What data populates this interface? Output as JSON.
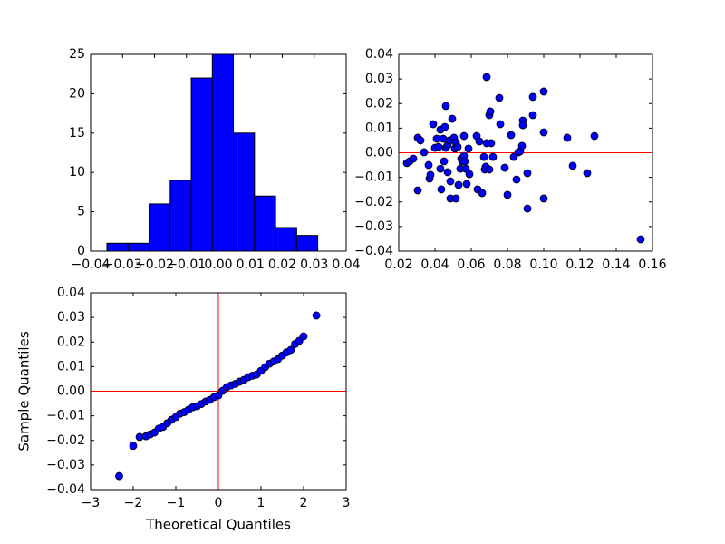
{
  "chart_data": [
    {
      "type": "histogram",
      "color": "#0000ff",
      "edge_color": "#000000",
      "grid": false,
      "bins": [
        -0.0349,
        -0.0283,
        -0.0217,
        -0.0151,
        -0.0085,
        -0.0019,
        0.0047,
        0.0113,
        0.0179,
        0.0245,
        0.0311
      ],
      "values": [
        1,
        1,
        6,
        9,
        22,
        25,
        15,
        7,
        3,
        2
      ],
      "xlim": [
        -0.04,
        0.04
      ],
      "xticks": [
        {
          "value": -0.04,
          "label": "−0.04"
        },
        {
          "value": -0.03,
          "label": "−0.03"
        },
        {
          "value": -0.02,
          "label": "−0.02"
        },
        {
          "value": -0.01,
          "label": "−0.01"
        },
        {
          "value": 0,
          "label": "0.00"
        },
        0.01,
        0.02,
        0.03,
        0.04
      ],
      "ylim": [
        0,
        25
      ],
      "yticks": [
        0,
        5,
        10,
        15,
        20,
        25
      ]
    },
    {
      "type": "scatter",
      "color": "#0000ff",
      "edge_color": "#000000",
      "grid": false,
      "hline": 0,
      "line_color": "#ff0000",
      "x": [
        0.0245,
        0.026,
        0.028,
        0.0305,
        0.0305,
        0.032,
        0.034,
        0.0365,
        0.037,
        0.0375,
        0.039,
        0.04,
        0.041,
        0.042,
        0.043,
        0.043,
        0.0435,
        0.0445,
        0.045,
        0.0455,
        0.046,
        0.046,
        0.047,
        0.047,
        0.048,
        0.0485,
        0.0485,
        0.0495,
        0.0505,
        0.051,
        0.0515,
        0.0515,
        0.0525,
        0.053,
        0.054,
        0.0545,
        0.055,
        0.056,
        0.056,
        0.0565,
        0.057,
        0.0575,
        0.0585,
        0.059,
        0.063,
        0.0635,
        0.0645,
        0.066,
        0.067,
        0.0675,
        0.068,
        0.0685,
        0.0685,
        0.07,
        0.07,
        0.0705,
        0.071,
        0.072,
        0.0755,
        0.076,
        0.0785,
        0.08,
        0.082,
        0.0835,
        0.085,
        0.086,
        0.087,
        0.088,
        0.0885,
        0.0885,
        0.091,
        0.091,
        0.094,
        0.094,
        0.1,
        0.1,
        0.1,
        0.113,
        0.116,
        0.124,
        0.128,
        0.1535
      ],
      "values": [
        -0.0042,
        -0.0035,
        -0.0024,
        -0.0153,
        0.0061,
        0.005,
        0.0002,
        -0.005,
        -0.0105,
        -0.009,
        0.0116,
        0.002,
        0.0057,
        0.0024,
        0.0094,
        -0.0065,
        -0.0149,
        0.0057,
        -0.0035,
        0.0105,
        0.002,
        0.019,
        0.0031,
        -0.0079,
        0.005,
        -0.0116,
        -0.0186,
        0.0138,
        0.0061,
        0.0017,
        0.0042,
        -0.0186,
        0.0024,
        -0.0131,
        -0.0065,
        -0.0024,
        -0.0035,
        -0.0013,
        0.0068,
        -0.0035,
        -0.0065,
        -0.0127,
        0.0017,
        -0.0087,
        0.0068,
        -0.0149,
        0.0046,
        -0.0164,
        -0.0017,
        -0.0068,
        -0.0057,
        0.0308,
        0.0039,
        0.0153,
        -0.0068,
        0.0168,
        0.0039,
        -0.0017,
        0.0223,
        0.0116,
        -0.0061,
        -0.0171,
        0.0072,
        -0.0017,
        -0.0109,
        0.0002,
        0.0006,
        0.0028,
        0.0131,
        0.0112,
        -0.0083,
        -0.0227,
        0.0153,
        0.0227,
        0.0249,
        0.0083,
        -0.0186,
        0.0061,
        -0.0053,
        -0.0083,
        0.0068,
        -0.0352
      ],
      "xlim": [
        0.02,
        0.16
      ],
      "xticks": [
        0.02,
        0.04,
        0.06,
        0.08,
        {
          "value": 0.1,
          "label": "0.10"
        },
        0.12,
        0.14,
        0.16
      ],
      "ylim": [
        -0.04,
        0.04
      ],
      "yticks": [
        {
          "value": -0.04,
          "label": "−0.04"
        },
        {
          "value": -0.03,
          "label": "−0.03"
        },
        {
          "value": -0.02,
          "label": "−0.02"
        },
        {
          "value": -0.01,
          "label": "−0.01"
        },
        {
          "value": 0,
          "label": "0.00"
        },
        0.01,
        0.02,
        0.03,
        0.04
      ]
    },
    {
      "type": "scatter",
      "color": "#0000ff",
      "edge_color": "#000000",
      "grid": false,
      "hline": 0,
      "vline": 0,
      "line_color": "#ff0000",
      "x_label": "Theoretical Quantiles",
      "y_label": "Sample Quantiles",
      "x": [
        -2.33,
        -2.0,
        -1.85,
        -1.7,
        -1.6,
        -1.5,
        -1.4,
        -1.3,
        -1.2,
        -1.1,
        -1.0,
        -0.9,
        -0.8,
        -0.7,
        -0.6,
        -0.5,
        -0.4,
        -0.3,
        -0.2,
        -0.1,
        0,
        0.1,
        0.2,
        0.3,
        0.4,
        0.5,
        0.6,
        0.7,
        0.8,
        0.9,
        1.0,
        1.1,
        1.2,
        1.3,
        1.4,
        1.5,
        1.6,
        1.7,
        1.8,
        1.9,
        2.0,
        2.3
      ],
      "values": [
        -0.0345,
        -0.0222,
        -0.0186,
        -0.0183,
        -0.0175,
        -0.0168,
        -0.0152,
        -0.0145,
        -0.013,
        -0.0116,
        -0.0105,
        -0.0091,
        -0.0085,
        -0.0075,
        -0.0065,
        -0.0061,
        -0.0052,
        -0.0042,
        -0.0035,
        -0.0024,
        -0.0017,
        0.0002,
        0.0017,
        0.0024,
        0.003,
        0.0039,
        0.0046,
        0.0057,
        0.0063,
        0.0068,
        0.0083,
        0.0098,
        0.0112,
        0.0121,
        0.0131,
        0.0145,
        0.0158,
        0.0168,
        0.0192,
        0.0205,
        0.0223,
        0.0308
      ],
      "xlim": [
        -3,
        3
      ],
      "xticks": [
        {
          "value": -3,
          "label": "−3"
        },
        {
          "value": -2,
          "label": "−2"
        },
        {
          "value": -1,
          "label": "−1"
        },
        0,
        1,
        2,
        3
      ],
      "ylim": [
        -0.04,
        0.04
      ],
      "yticks": [
        {
          "value": -0.04,
          "label": "−0.04"
        },
        {
          "value": -0.03,
          "label": "−0.03"
        },
        {
          "value": -0.02,
          "label": "−0.02"
        },
        {
          "value": -0.01,
          "label": "−0.01"
        },
        {
          "value": 0,
          "label": "0.00"
        },
        0.01,
        0.02,
        0.03,
        0.04
      ]
    }
  ]
}
